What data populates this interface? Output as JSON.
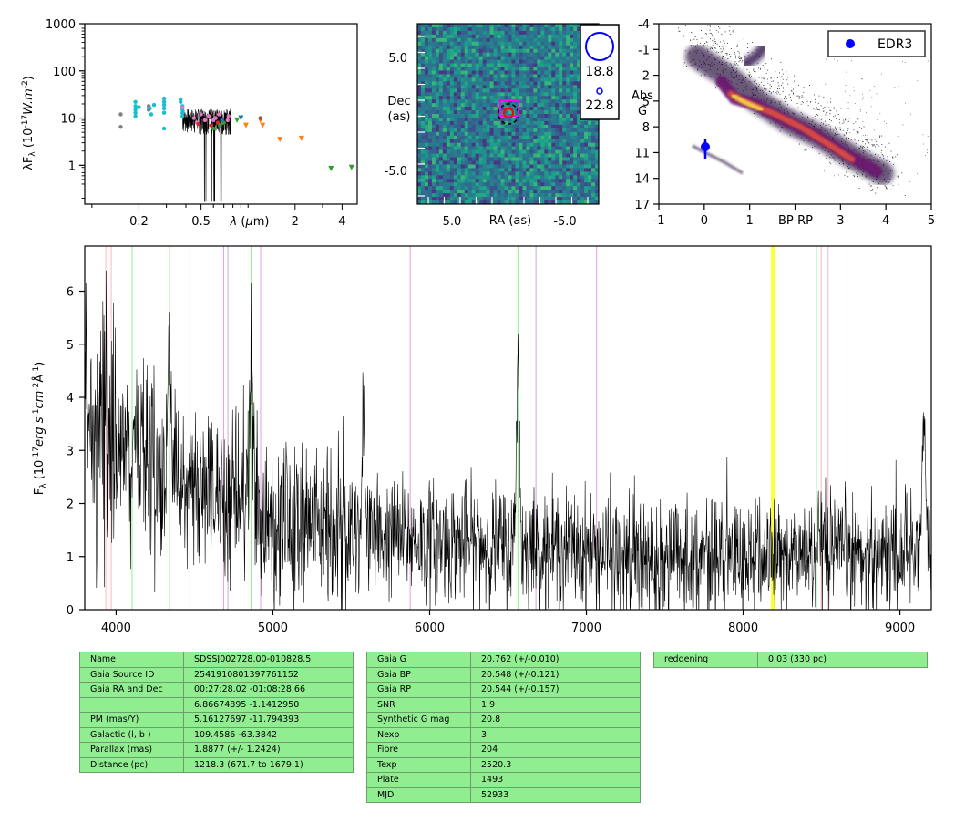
{
  "sed": {
    "ylabel": "λF$_λ$ (10$^{-17}$W.m$^{-2}$)",
    "xlabel": "λ (μm)",
    "ytick_labels": [
      "1000",
      "100",
      "10",
      "1"
    ],
    "xtick_labels": [
      "0.2",
      "0.5",
      "2",
      "4"
    ]
  },
  "cutout": {
    "xlabel": "RA (as)",
    "ylabel_line1": "Dec",
    "ylabel_line2": "(as)",
    "xtick_labels": [
      "5.0",
      "-5.0"
    ],
    "ytick_labels": [
      "5.0",
      "-5.0"
    ],
    "legend_bright": "18.8",
    "legend_faint": "22.8"
  },
  "hrd": {
    "xlabel": "BP-RP",
    "ylabel_line1": "Abs",
    "ylabel_line2": "G",
    "legend_label": "EDR3",
    "ytick_labels": [
      "-4",
      "-1",
      "2",
      "5",
      "8",
      "11",
      "14",
      "17"
    ],
    "xtick_labels": [
      "-1",
      "0",
      "1",
      "3",
      "4",
      "5"
    ]
  },
  "spectrum": {
    "ylabel": "F$_λ$ (10$^{-17}$erg s$^{-1}$cm$^{-2}$Å$^{-1}$)",
    "ytick_labels": [
      "0",
      "1",
      "2",
      "3",
      "4",
      "5",
      "6"
    ],
    "xtick_labels": [
      "4000",
      "5000",
      "6000",
      "7000",
      "8000",
      "9000"
    ]
  },
  "chart_data": [
    {
      "type": "scatter",
      "panel": "sed",
      "xscale": "log",
      "yscale": "log",
      "xlim": [
        0.09,
        5.0
      ],
      "ylim": [
        0.15,
        1000
      ],
      "series": [
        {
          "color": "#7f7f7f",
          "x": [
            0.153,
            0.153,
            0.231,
            0.231
          ],
          "y": [
            12,
            6.5,
            18,
            15
          ]
        },
        {
          "color": "#17becf",
          "x": [
            0.19,
            0.19,
            0.19,
            0.19,
            0.19,
            0.2,
            0.235,
            0.24,
            0.25,
            0.29,
            0.29,
            0.29,
            0.29,
            0.29,
            0.29,
            0.37,
            0.37,
            0.38,
            0.38,
            0.38,
            0.38
          ],
          "y": [
            22,
            18,
            15,
            13,
            11,
            17,
            16,
            12,
            19,
            26,
            22,
            19,
            16,
            13,
            6,
            25,
            22,
            18,
            15,
            13,
            11
          ]
        },
        {
          "color": "#e377c2",
          "x": [
            0.38,
            0.45,
            0.47,
            0.5,
            0.53,
            0.56,
            0.6,
            0.62,
            0.65,
            0.69,
            0.74,
            0.75
          ],
          "y": [
            17,
            10,
            8,
            12,
            9,
            11,
            9,
            10,
            12,
            8,
            9,
            11
          ]
        },
        {
          "color": "#d62728",
          "x": [
            0.48,
            0.58,
            0.64
          ],
          "y": [
            7.5,
            7,
            8
          ]
        },
        {
          "color": "#2ca02c",
          "x": [
            0.6,
            0.66,
            0.7,
            0.85,
            3.4,
            4.6
          ],
          "y": [
            6,
            7,
            8,
            9,
            0.85,
            0.9
          ]
        },
        {
          "color": "#1f77b4",
          "x": [
            0.68,
            0.9
          ],
          "y": [
            9,
            10
          ]
        },
        {
          "color": "#ff7f0e",
          "x": [
            0.97,
            1.2,
            1.24,
            1.6,
            2.2
          ],
          "y": [
            7,
            9,
            7,
            3.5,
            3.7
          ]
        },
        {
          "color": "#8c564b",
          "x": [
            1.2
          ],
          "y": [
            10
          ]
        }
      ]
    },
    {
      "type": "heatmap",
      "panel": "cutout",
      "xlim": [
        8.5,
        -8.0
      ],
      "ylim": [
        -8.5,
        8.0
      ],
      "markers": [
        {
          "name": "target",
          "x": 0,
          "y": 0
        },
        {
          "name": "gaia",
          "x": 0,
          "y": 0
        }
      ]
    },
    {
      "type": "scatter",
      "panel": "hrd",
      "xlim": [
        -1,
        5
      ],
      "ylim": [
        17,
        -4
      ],
      "series": [
        {
          "name": "EDR3",
          "color": "#0000ff",
          "x": [
            0.02
          ],
          "y": [
            10.5
          ],
          "yerr": [
            0.9
          ]
        }
      ]
    },
    {
      "type": "line",
      "panel": "spectrum",
      "xlim": [
        3800,
        9200
      ],
      "ylim": [
        0,
        6.85
      ],
      "color": "#000000",
      "continuum": [
        [
          3800,
          3.5
        ],
        [
          4000,
          3.0
        ],
        [
          4500,
          2.3
        ],
        [
          5000,
          1.8
        ],
        [
          5500,
          1.45
        ],
        [
          6000,
          1.3
        ],
        [
          6500,
          1.2
        ],
        [
          7000,
          1.1
        ],
        [
          7500,
          1.0
        ],
        [
          8000,
          1.0
        ],
        [
          8500,
          1.0
        ],
        [
          9000,
          1.1
        ],
        [
          9200,
          1.4
        ]
      ],
      "emission": [
        {
          "x": 4340,
          "peak": 5.1
        },
        {
          "x": 4861,
          "peak": 4.6
        },
        {
          "x": 6563,
          "peak": 5.0
        },
        {
          "x": 5577,
          "peak": 4.1
        },
        {
          "x": 9150,
          "peak": 3.4
        }
      ],
      "noise_sigma_blue": 0.8,
      "noise_sigma_red": 0.55,
      "reference_lines": [
        {
          "color": "#ffb6c1",
          "x": [
            3934,
            3969,
            8498,
            8542,
            8662
          ]
        },
        {
          "color": "#90ee90",
          "x": [
            4102,
            4340,
            4861,
            6563,
            8467,
            8598
          ]
        },
        {
          "color": "#dda0dd",
          "x": [
            4471,
            4686,
            4713,
            4922,
            5876,
            6678,
            7065
          ]
        },
        {
          "color": "#ffff00",
          "x": [
            8183,
            8195
          ]
        }
      ]
    }
  ],
  "tables": {
    "left": [
      [
        "Name",
        "SDSSJ002728.00-010828.5"
      ],
      [
        "Gaia Source ID",
        "2541910801397761152"
      ],
      [
        "Gaia RA and Dec",
        "00:27:28.02    -01:08:28.66"
      ],
      [
        "",
        "6.86674895    -1.1412950"
      ],
      [
        "PM (mas/Y)",
        "5.16127697    -11.794393"
      ],
      [
        "Galactic (l, b )",
        "109.4586    -63.3842"
      ],
      [
        "Parallax (mas)",
        "1.8877 (+/- 1.2424)"
      ],
      [
        "Distance (pc)",
        "1218.3 (671.7 to 1679.1)"
      ]
    ],
    "middle": [
      [
        "Gaia G",
        "20.762 (+/-0.010)"
      ],
      [
        "Gaia BP",
        "20.548 (+/-0.121)"
      ],
      [
        "Gaia RP",
        "20.544 (+/-0.157)"
      ],
      [
        "SNR",
        "1.9"
      ],
      [
        "Synthetic G mag",
        "20.8"
      ],
      [
        "Nexp",
        "3"
      ],
      [
        "Fibre",
        "204"
      ],
      [
        "Texp",
        "2520.3"
      ],
      [
        "Plate",
        "1493"
      ],
      [
        "MJD",
        "52933"
      ]
    ],
    "right": [
      [
        "reddening",
        "0.03 (330 pc)"
      ]
    ]
  }
}
